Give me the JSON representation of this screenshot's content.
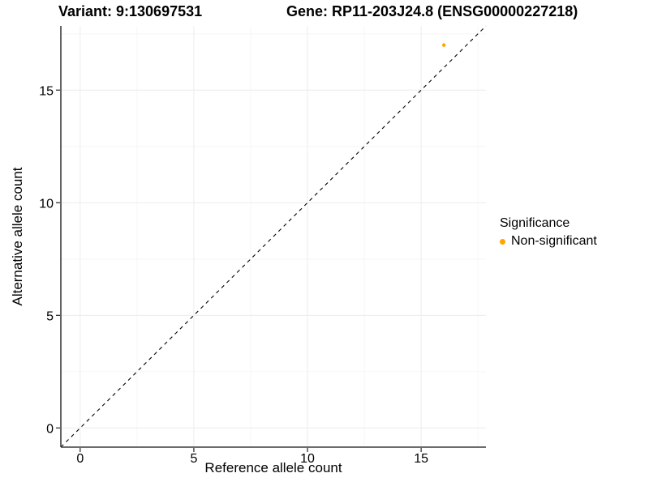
{
  "header": {
    "variant_title": "Variant: 9:130697531",
    "gene_title": "Gene: RP11-203J24.8 (ENSG00000227218)"
  },
  "legend": {
    "title": "Significance",
    "items": [
      {
        "label": "Non-significant",
        "color": "#FFA500"
      }
    ]
  },
  "chart_data": {
    "type": "scatter",
    "title_left": "Variant: 9:130697531",
    "title_right": "Gene: RP11-203J24.8 (ENSG00000227218)",
    "xlabel": "Reference allele count",
    "ylabel": "Alternative allele count",
    "xlim": [
      -0.85,
      17.85
    ],
    "ylim": [
      -0.85,
      17.85
    ],
    "x_ticks": [
      0,
      5,
      10,
      15
    ],
    "y_ticks": [
      0,
      5,
      10,
      15
    ],
    "minor_gridlines": [
      2.5,
      7.5,
      12.5,
      17.5
    ],
    "grid": "on",
    "legend_position": "right-center",
    "series": [
      {
        "name": "Non-significant",
        "color": "#FFA500",
        "points": [
          {
            "x": 16,
            "y": 17
          }
        ]
      }
    ],
    "reference_line": {
      "kind": "identity",
      "slope": 1,
      "intercept": 0,
      "style": "dashed",
      "color": "#000000"
    }
  },
  "colors": {
    "background": "#FFFFFF",
    "axis_line": "#3C3C3C",
    "tick_mark": "#333333",
    "major_gridline": "#ECECEC",
    "minor_gridline": "#F6F6F6",
    "tick_text": "#000000",
    "nonsignificant_point": "#FFA500"
  }
}
